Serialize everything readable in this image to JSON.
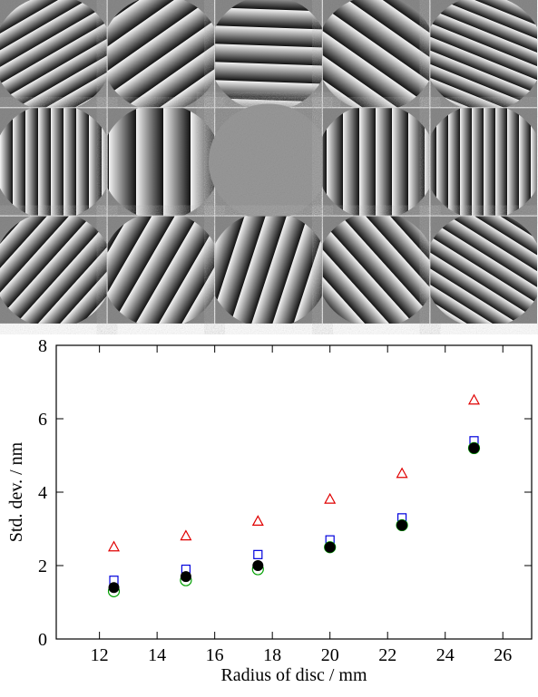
{
  "chart_data": {
    "type": "scatter",
    "xlabel": "Radius of disc / mm",
    "ylabel": "Std. dev. / nm",
    "x": [
      12.5,
      15,
      17.5,
      20,
      22.5,
      25
    ],
    "series": [
      {
        "color": "#e00000",
        "marker": "triangle-open",
        "values": [
          2.5,
          2.8,
          3.2,
          3.8,
          4.5,
          6.5
        ]
      },
      {
        "color": "#0000dd",
        "marker": "square-open",
        "values": [
          1.6,
          1.9,
          2.3,
          2.7,
          3.3,
          5.4
        ]
      },
      {
        "color": "#00a000",
        "marker": "circle-open",
        "values": [
          1.3,
          1.6,
          1.9,
          2.5,
          3.1,
          5.2
        ]
      },
      {
        "color": "#000000",
        "marker": "circle-filled",
        "values": [
          1.4,
          1.7,
          2.0,
          2.5,
          3.1,
          5.2
        ]
      }
    ],
    "xlim": [
      10.5,
      27
    ],
    "ylim": [
      0,
      8
    ],
    "xticks": [
      12,
      14,
      16,
      18,
      20,
      22,
      24,
      26
    ],
    "yticks": [
      0,
      2,
      4,
      6,
      8
    ]
  }
}
